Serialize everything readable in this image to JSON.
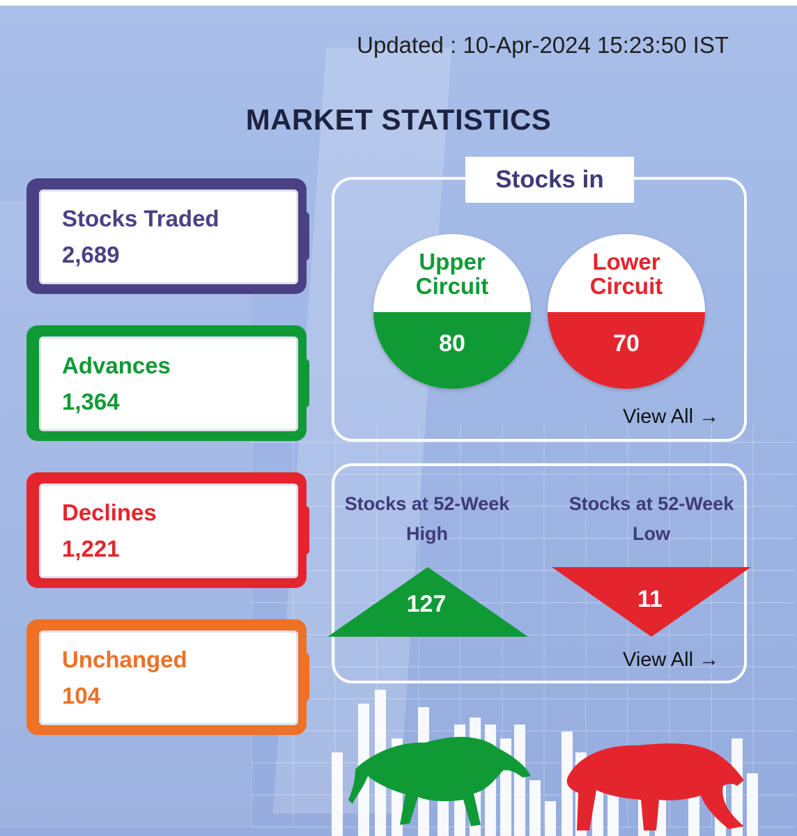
{
  "updated": "Updated : 10-Apr-2024 15:23:50 IST",
  "title": "MARKET STATISTICS",
  "stats": [
    {
      "label": "Stocks Traded",
      "value": "2,689"
    },
    {
      "label": "Advances",
      "value": "1,364"
    },
    {
      "label": "Declines",
      "value": "1,221"
    },
    {
      "label": "Unchanged",
      "value": "104"
    }
  ],
  "circuit": {
    "heading": "Stocks in",
    "upper": {
      "label_line1": "Upper",
      "label_line2": "Circuit",
      "value": "80"
    },
    "lower": {
      "label_line1": "Lower",
      "label_line2": "Circuit",
      "value": "70"
    },
    "view_all": "View All →"
  },
  "week52": {
    "high": {
      "label_line1": "Stocks at 52-Week",
      "label_line2": "High",
      "value": "127"
    },
    "low": {
      "label_line1": "Stocks at 52-Week",
      "label_line2": "Low",
      "value": "11"
    },
    "view_all": "View All →"
  },
  "colors": {
    "traded": "#4a4184",
    "advances": "#109a36",
    "declines": "#e5252d",
    "unchanged": "#ee7126",
    "heading": "#3f3a78"
  },
  "icons": [
    "bull-icon",
    "bear-icon"
  ]
}
